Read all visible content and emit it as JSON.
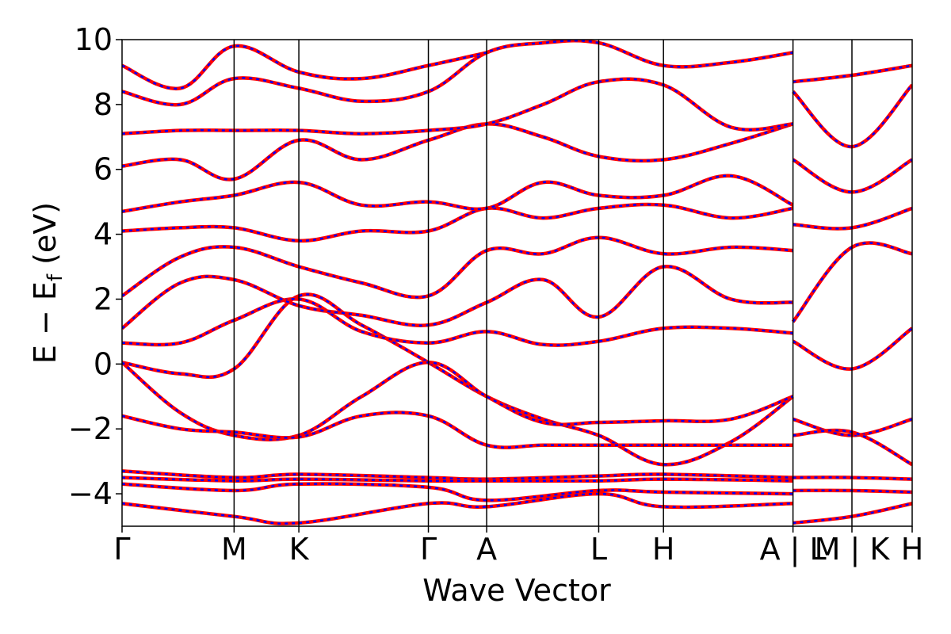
{
  "chart_data": {
    "type": "line",
    "xlabel": "Wave Vector",
    "ylabel": "E − E",
    "ylabel_sub": "f",
    "ylabel_unit": " (eV)",
    "ylim": [
      -5,
      10
    ],
    "yticks": [
      10,
      8,
      6,
      4,
      2,
      0,
      -2,
      -4
    ],
    "ytick_labels": [
      "10",
      "8",
      "6",
      "4",
      "2",
      "0",
      "−2",
      "−4"
    ],
    "xlim": [
      0,
      12.2
    ],
    "kpath_ticks": [
      {
        "label": "Γ",
        "x": 0.0
      },
      {
        "label": "M",
        "x": 1.73
      },
      {
        "label": "K",
        "x": 2.73
      },
      {
        "label": "Γ",
        "x": 4.73
      },
      {
        "label": "A",
        "x": 5.63
      },
      {
        "label": "L",
        "x": 7.36
      },
      {
        "label": "H",
        "x": 8.36
      },
      {
        "label": "A | L",
        "x": 10.36
      },
      {
        "label": "M | K",
        "x": 11.27
      },
      {
        "label": "H",
        "x": 12.2
      }
    ],
    "grid": false,
    "series": [
      {
        "color": "#ff0000",
        "style": "solid",
        "values_ref": "bands"
      },
      {
        "color": "#0000ff",
        "style": "dashed",
        "values_ref": "bands"
      }
    ],
    "bands": [
      {
        "segment": "main",
        "x": [
          0,
          0.9,
          1.73,
          2.73,
          3.7,
          4.73,
          5.63,
          6.5,
          7.36,
          8.36,
          9.4,
          10.36
        ],
        "y": [
          0.05,
          -0.3,
          -0.15,
          2.1,
          1.2,
          0.05,
          -1.0,
          -1.7,
          -2.2,
          -3.1,
          -2.4,
          -1.0
        ]
      },
      {
        "segment": "main",
        "x": [
          0,
          0.9,
          1.73,
          2.73,
          3.7,
          4.73,
          5.63,
          6.5,
          7.36,
          8.36,
          9.4,
          10.36
        ],
        "y": [
          0.05,
          -1.5,
          -2.2,
          -2.2,
          -1.0,
          0.05,
          -1.0,
          -1.8,
          -1.8,
          -1.75,
          -1.7,
          -1.0
        ]
      },
      {
        "segment": "main",
        "x": [
          0,
          0.9,
          1.73,
          2.73,
          3.7,
          4.73,
          5.63,
          6.5,
          7.36,
          8.36,
          9.4,
          10.36
        ],
        "y": [
          -1.6,
          -2.0,
          -2.1,
          -2.25,
          -1.6,
          -1.6,
          -2.5,
          -2.5,
          -2.5,
          -2.5,
          -2.5,
          -2.5
        ]
      },
      {
        "segment": "main",
        "x": [
          0,
          0.9,
          1.73,
          2.73,
          3.7,
          4.73,
          5.63,
          6.5,
          7.36,
          8.36,
          9.4,
          10.36
        ],
        "y": [
          0.65,
          0.65,
          1.35,
          2.0,
          1.0,
          0.65,
          1.0,
          0.6,
          0.7,
          1.1,
          1.1,
          0.95
        ]
      },
      {
        "segment": "main",
        "x": [
          0,
          0.9,
          1.73,
          2.73,
          3.7,
          4.73,
          5.63,
          6.5,
          7.36,
          8.36,
          9.4,
          10.36
        ],
        "y": [
          1.1,
          2.5,
          2.6,
          1.8,
          1.5,
          1.2,
          1.9,
          2.6,
          1.45,
          3.0,
          2.0,
          1.9
        ]
      },
      {
        "segment": "main",
        "x": [
          0,
          0.9,
          1.73,
          2.73,
          3.7,
          4.73,
          5.63,
          6.5,
          7.36,
          8.36,
          9.4,
          10.36
        ],
        "y": [
          2.1,
          3.3,
          3.6,
          3.0,
          2.5,
          2.1,
          3.5,
          3.4,
          3.9,
          3.4,
          3.6,
          3.5
        ]
      },
      {
        "segment": "main",
        "x": [
          0,
          0.9,
          1.73,
          2.73,
          3.7,
          4.73,
          5.63,
          6.5,
          7.36,
          8.36,
          9.4,
          10.36
        ],
        "y": [
          4.1,
          4.2,
          4.2,
          3.8,
          4.1,
          4.1,
          4.8,
          4.5,
          4.8,
          4.9,
          4.5,
          4.8
        ]
      },
      {
        "segment": "main",
        "x": [
          0,
          0.9,
          1.73,
          2.73,
          3.7,
          4.73,
          5.63,
          6.5,
          7.36,
          8.36,
          9.4,
          10.36
        ],
        "y": [
          4.7,
          5.0,
          5.2,
          5.6,
          4.9,
          5.0,
          4.8,
          5.6,
          5.2,
          5.2,
          5.8,
          4.9
        ]
      },
      {
        "segment": "main",
        "x": [
          0,
          0.9,
          1.73,
          2.73,
          3.7,
          4.73,
          5.63,
          6.5,
          7.36,
          8.36,
          9.4,
          10.36
        ],
        "y": [
          6.1,
          6.3,
          5.7,
          6.9,
          6.3,
          6.9,
          7.4,
          7.0,
          6.4,
          6.3,
          6.8,
          7.4
        ]
      },
      {
        "segment": "main",
        "x": [
          0,
          0.9,
          1.73,
          2.73,
          3.7,
          4.73,
          5.63,
          6.5,
          7.36,
          8.36,
          9.4,
          10.36
        ],
        "y": [
          7.1,
          7.2,
          7.2,
          7.2,
          7.1,
          7.2,
          7.4,
          8.0,
          8.7,
          8.6,
          7.3,
          7.4
        ]
      },
      {
        "segment": "main",
        "x": [
          0,
          0.9,
          1.73,
          2.73,
          3.7,
          4.73,
          5.63,
          6.5,
          7.36,
          8.36,
          9.4,
          10.36
        ],
        "y": [
          8.4,
          8.0,
          8.8,
          8.5,
          8.1,
          8.4,
          9.6,
          9.9,
          9.9,
          9.2,
          9.3,
          9.6
        ]
      },
      {
        "segment": "main",
        "x": [
          0,
          0.9,
          1.73,
          2.73,
          3.7,
          4.73,
          5.63
        ],
        "y": [
          9.2,
          8.5,
          9.8,
          9.0,
          8.8,
          9.2,
          9.6
        ]
      },
      {
        "segment": "main",
        "x": [
          0,
          1.73,
          2.73,
          4.73,
          5.63,
          7.36,
          8.36,
          10.36
        ],
        "y": [
          -3.3,
          -3.5,
          -3.4,
          -3.5,
          -3.55,
          -3.45,
          -3.4,
          -3.5
        ]
      },
      {
        "segment": "main",
        "x": [
          0,
          1.73,
          2.73,
          4.73,
          5.63,
          7.36,
          8.36,
          10.36
        ],
        "y": [
          -3.5,
          -3.6,
          -3.55,
          -3.6,
          -3.6,
          -3.6,
          -3.55,
          -3.6
        ]
      },
      {
        "segment": "main",
        "x": [
          0,
          1.73,
          2.73,
          4.73,
          5.63,
          7.36,
          8.36,
          10.36
        ],
        "y": [
          -3.7,
          -3.9,
          -3.7,
          -3.8,
          -4.2,
          -3.9,
          -3.95,
          -4.0
        ]
      },
      {
        "segment": "main",
        "x": [
          0,
          1.73,
          2.73,
          4.73,
          5.63,
          7.36,
          8.36,
          10.36
        ],
        "y": [
          -4.3,
          -4.7,
          -4.9,
          -4.3,
          -4.4,
          -4.0,
          -4.4,
          -4.3
        ]
      },
      {
        "segment": "tail",
        "x": [
          10.36,
          11.27,
          12.2
        ],
        "y": [
          0.7,
          -0.15,
          1.1
        ]
      },
      {
        "segment": "tail",
        "x": [
          10.36,
          11.27,
          12.2
        ],
        "y": [
          1.3,
          3.6,
          3.4
        ]
      },
      {
        "segment": "tail",
        "x": [
          10.36,
          11.27,
          12.2
        ],
        "y": [
          4.3,
          4.2,
          4.8
        ]
      },
      {
        "segment": "tail",
        "x": [
          10.36,
          11.27,
          12.2
        ],
        "y": [
          6.3,
          5.3,
          6.3
        ]
      },
      {
        "segment": "tail",
        "x": [
          10.36,
          11.27,
          12.2
        ],
        "y": [
          8.4,
          6.7,
          8.6
        ]
      },
      {
        "segment": "tail",
        "x": [
          10.36,
          11.27,
          12.2
        ],
        "y": [
          8.7,
          8.9,
          9.2
        ]
      },
      {
        "segment": "tail",
        "x": [
          10.36,
          11.27,
          12.2
        ],
        "y": [
          -1.7,
          -2.2,
          -1.7
        ]
      },
      {
        "segment": "tail",
        "x": [
          10.36,
          11.27,
          12.2
        ],
        "y": [
          -2.2,
          -2.1,
          -3.1
        ]
      },
      {
        "segment": "tail",
        "x": [
          10.36,
          11.27,
          12.2
        ],
        "y": [
          -3.5,
          -3.5,
          -3.55
        ]
      },
      {
        "segment": "tail",
        "x": [
          10.36,
          11.27,
          12.2
        ],
        "y": [
          -3.9,
          -3.9,
          -3.95
        ]
      },
      {
        "segment": "tail",
        "x": [
          10.36,
          11.27,
          12.2
        ],
        "y": [
          -4.9,
          -4.7,
          -4.3
        ]
      }
    ]
  }
}
